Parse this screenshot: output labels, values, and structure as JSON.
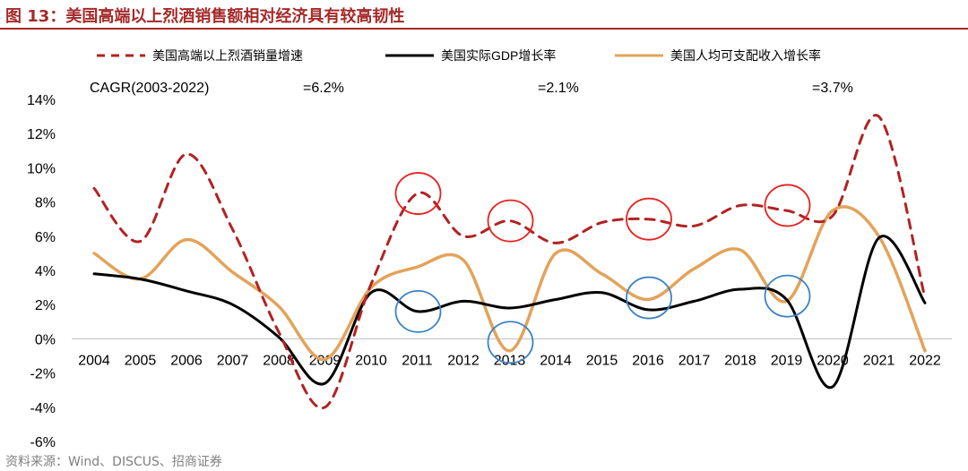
{
  "title": "图 13：美国高端以上烈酒销售额相对经济具有较高韧性",
  "source": "资料来源：Wind、DISCUS、招商证券",
  "cagr": {
    "label": "CAGR(2003-2022)",
    "values": [
      "=6.2%",
      "=2.1%",
      "=3.7%"
    ]
  },
  "colors": {
    "title": "#a52a2a",
    "spirits": "#b22222",
    "gdp": "#000000",
    "income": "#e3a35a",
    "circle_red": "#e8211e",
    "circle_blue": "#3b82c4"
  },
  "chart_data": {
    "type": "line",
    "x": [
      "2004",
      "2005",
      "2006",
      "2007",
      "2008",
      "2009",
      "2010",
      "2011",
      "2012",
      "2013",
      "2014",
      "2015",
      "2016",
      "2017",
      "2018",
      "2019",
      "2020",
      "2021",
      "2022"
    ],
    "ylim": [
      -6,
      14
    ],
    "yticks": [
      "14%",
      "12%",
      "10%",
      "8%",
      "6%",
      "4%",
      "2%",
      "0%",
      "-2%",
      "-4%",
      "-6%"
    ],
    "grid": false,
    "legend_position": "top",
    "series": [
      {
        "name": "美国高端以上烈酒销量增速",
        "style": "dashed",
        "values": [
          8.8,
          5.7,
          10.8,
          6.4,
          0.4,
          -4.0,
          3.2,
          8.5,
          6.0,
          6.9,
          5.6,
          6.8,
          7.0,
          6.6,
          7.8,
          7.5,
          7.2,
          13.0,
          2.4
        ]
      },
      {
        "name": "美国实际GDP增长率",
        "style": "solid",
        "values": [
          3.8,
          3.5,
          2.8,
          2.0,
          0.1,
          -2.6,
          2.7,
          1.6,
          2.2,
          1.8,
          2.3,
          2.7,
          1.7,
          2.2,
          2.9,
          2.3,
          -2.8,
          5.9,
          2.1
        ]
      },
      {
        "name": "美国人均可支配收入增长率",
        "style": "solid",
        "values": [
          5.0,
          3.5,
          5.8,
          3.9,
          1.9,
          -1.2,
          3.0,
          4.2,
          4.6,
          -0.7,
          5.0,
          3.8,
          2.3,
          4.1,
          5.2,
          2.2,
          7.5,
          6.0,
          -0.7
        ]
      }
    ],
    "highlights": [
      {
        "x": "2011",
        "color": "red"
      },
      {
        "x": "2013",
        "color": "red"
      },
      {
        "x": "2016",
        "color": "red"
      },
      {
        "x": "2019",
        "color": "red"
      },
      {
        "x": "2011",
        "color": "blue"
      },
      {
        "x": "2013",
        "color": "blue"
      },
      {
        "x": "2016",
        "color": "blue"
      },
      {
        "x": "2019",
        "color": "blue"
      }
    ]
  }
}
